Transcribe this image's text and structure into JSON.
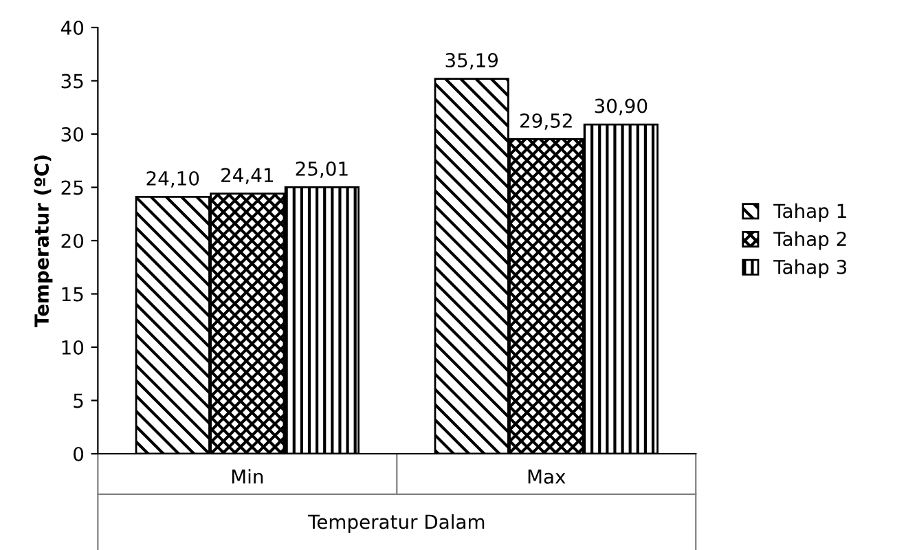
{
  "chart_data": {
    "type": "bar",
    "xlabel": "Temperatur Dalam",
    "ylabel": "Temperatur (ºC)",
    "categories": [
      "Min",
      "Max"
    ],
    "series": [
      {
        "name": "Tahap 1",
        "color": "#000000",
        "values": [
          24.1,
          35.19
        ],
        "value_labels": [
          "24,10",
          "35,19"
        ]
      },
      {
        "name": "Tahap 2",
        "color": "#000000",
        "values": [
          24.41,
          29.52
        ],
        "value_labels": [
          "24,41",
          "29,52"
        ]
      },
      {
        "name": "Tahap 3",
        "color": "#000000",
        "values": [
          25.01,
          30.9
        ],
        "value_labels": [
          "25,01",
          "30,90"
        ]
      }
    ],
    "ylim": [
      0,
      40
    ],
    "yticks": [
      0,
      5,
      10,
      15,
      20,
      25,
      30,
      35,
      40
    ],
    "grid": false,
    "legend": "right"
  }
}
